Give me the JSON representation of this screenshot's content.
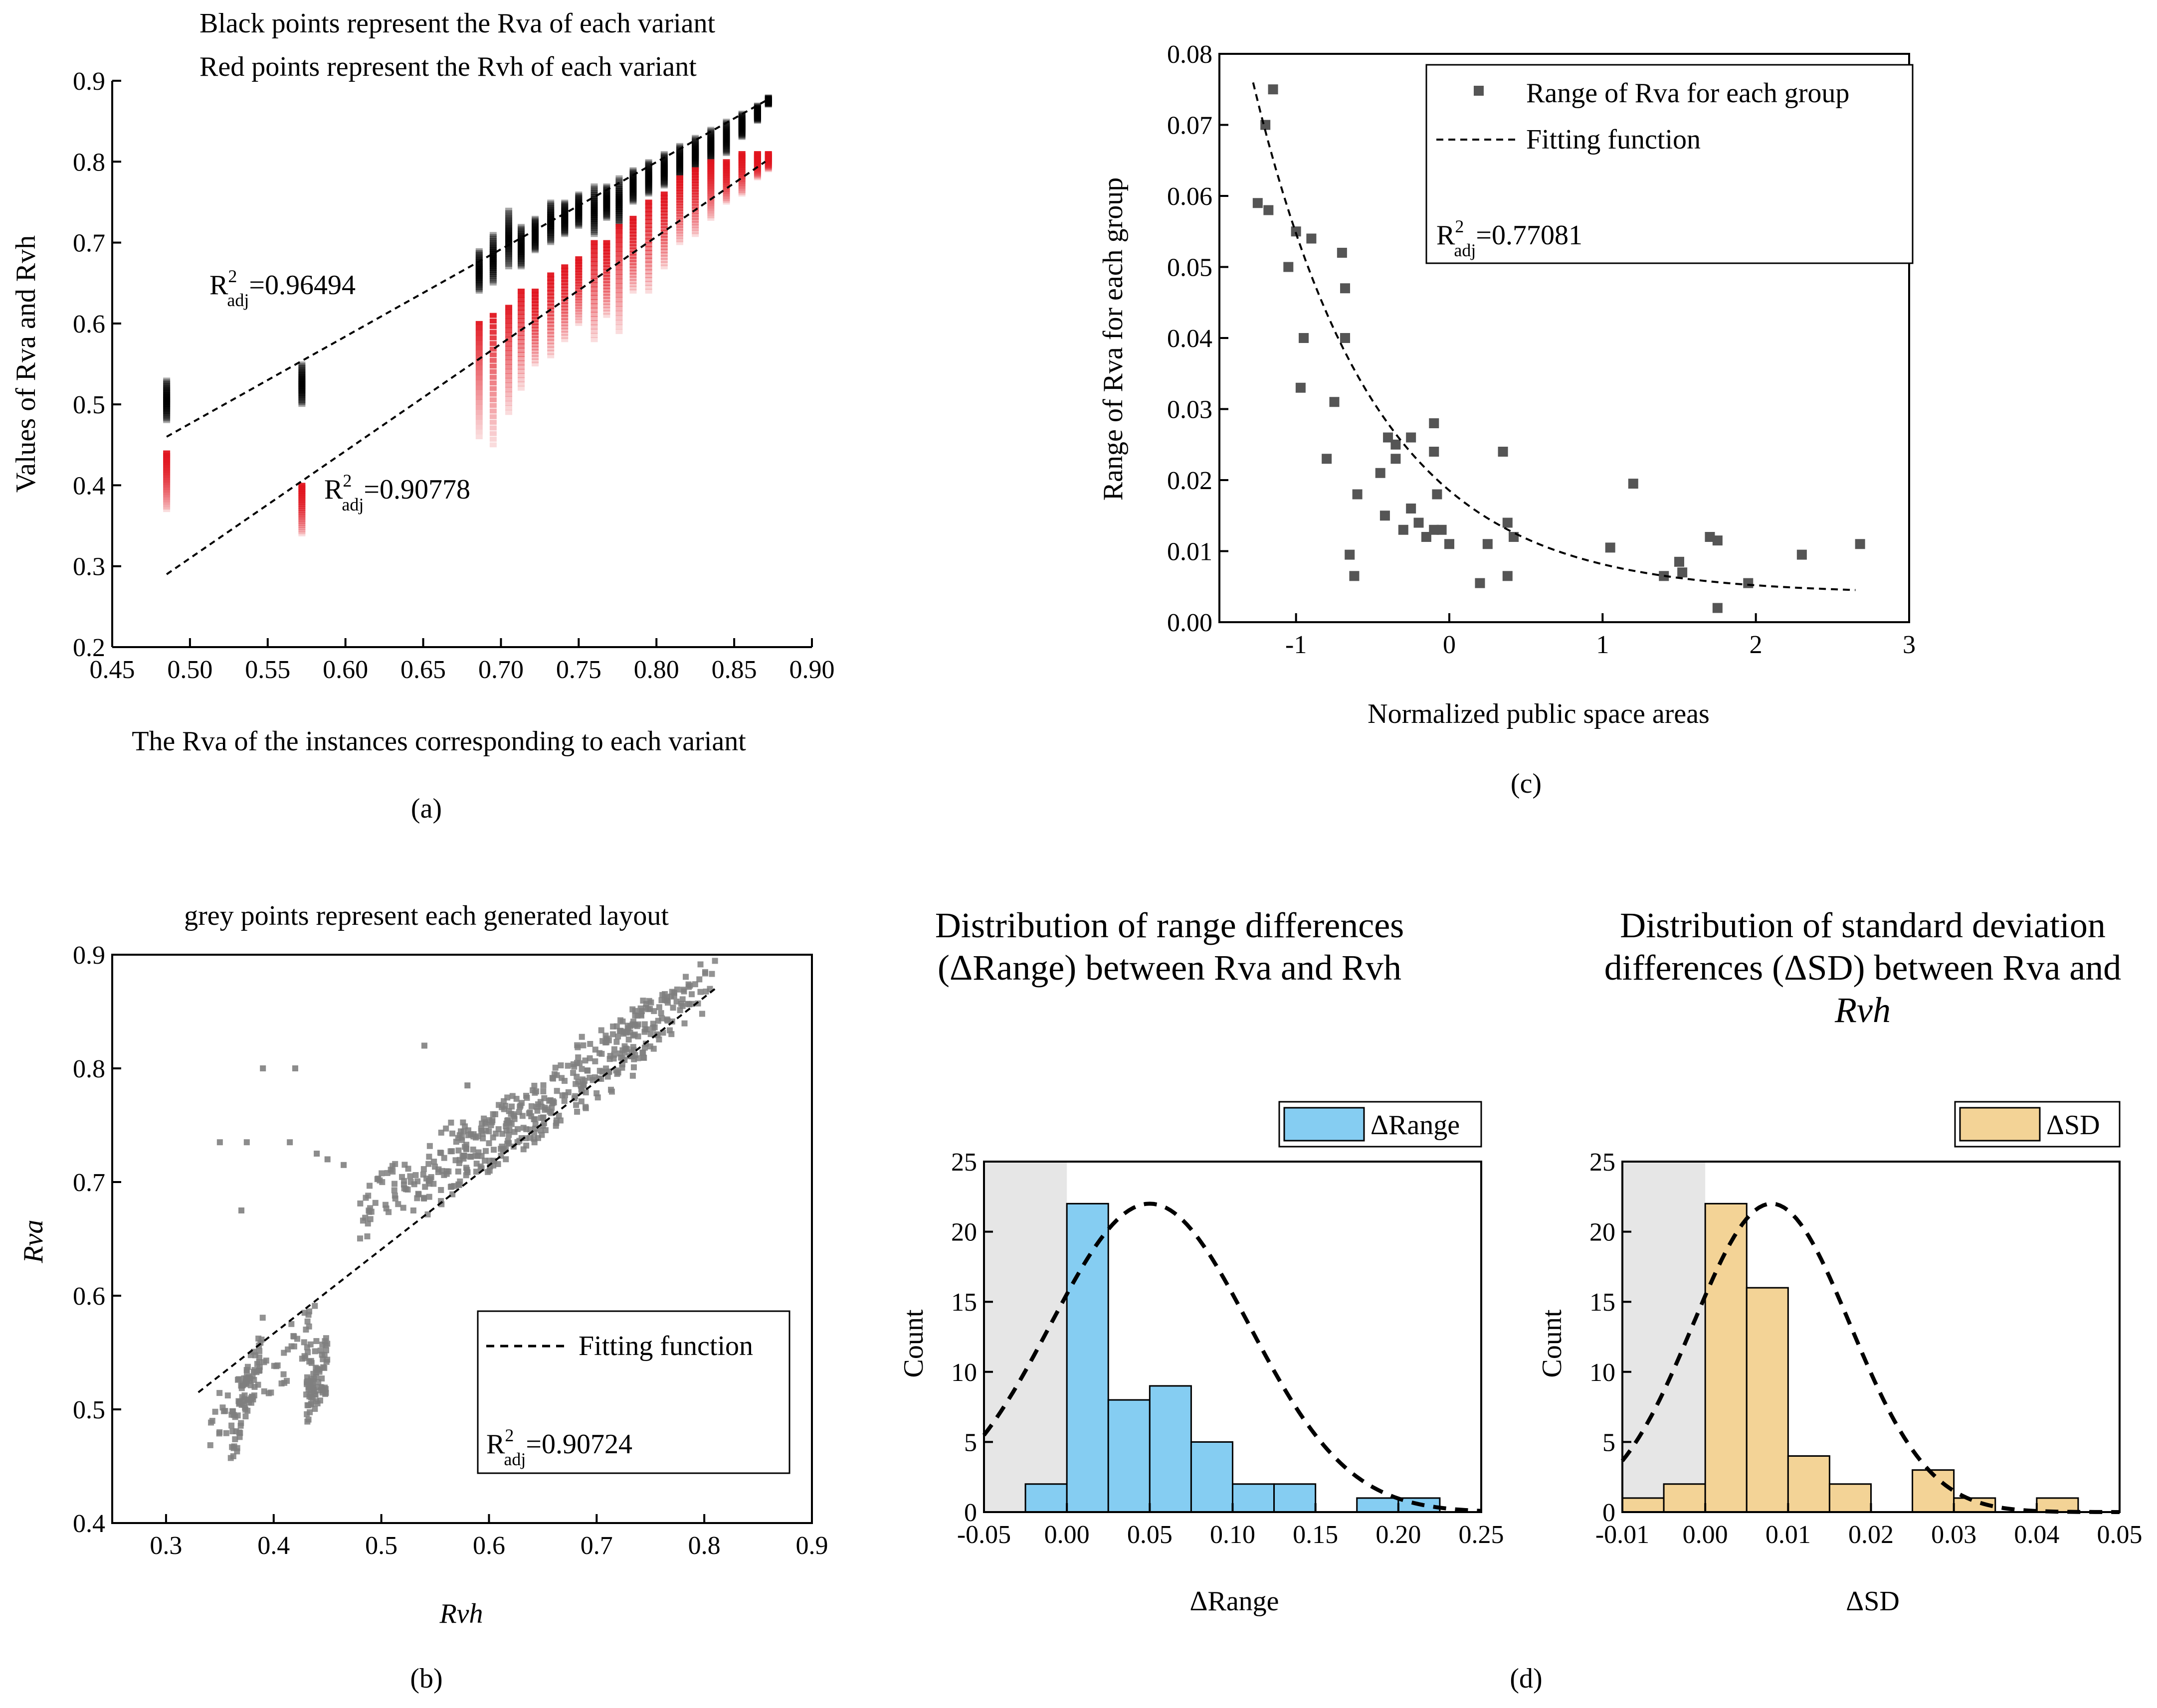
{
  "chart_data": [
    {
      "id": "a",
      "type": "scatter",
      "caption": "(a)",
      "annotations": [
        "Black points represent the Rva of each variant",
        "Red points represent the Rvh of each variant"
      ],
      "xlabel": "The Rva of the instances corresponding to each variant",
      "ylabel": "Values of Rva and Rvh",
      "xlim": [
        0.45,
        0.9
      ],
      "ylim": [
        0.2,
        0.9
      ],
      "xticks": [
        "0.45",
        "0.50",
        "0.55",
        "0.60",
        "0.65",
        "0.70",
        "0.75",
        "0.80",
        "0.85",
        "0.90"
      ],
      "yticks": [
        "0.2",
        "0.3",
        "0.4",
        "0.5",
        "0.6",
        "0.7",
        "0.8",
        "0.9"
      ],
      "series": [
        {
          "name": "Rva",
          "color": "#000000",
          "clusters": [
            [
              0.485,
              0.48,
              0.53
            ],
            [
              0.572,
              0.5,
              0.55
            ],
            [
              0.686,
              0.64,
              0.69
            ],
            [
              0.695,
              0.65,
              0.71
            ],
            [
              0.705,
              0.67,
              0.74
            ],
            [
              0.713,
              0.67,
              0.72
            ],
            [
              0.722,
              0.69,
              0.73
            ],
            [
              0.732,
              0.7,
              0.75
            ],
            [
              0.741,
              0.71,
              0.75
            ],
            [
              0.75,
              0.72,
              0.76
            ],
            [
              0.76,
              0.71,
              0.77
            ],
            [
              0.768,
              0.73,
              0.77
            ],
            [
              0.776,
              0.72,
              0.78
            ],
            [
              0.785,
              0.75,
              0.79
            ],
            [
              0.795,
              0.76,
              0.8
            ],
            [
              0.805,
              0.77,
              0.81
            ],
            [
              0.815,
              0.78,
              0.82
            ],
            [
              0.825,
              0.79,
              0.83
            ],
            [
              0.835,
              0.8,
              0.84
            ],
            [
              0.845,
              0.81,
              0.85
            ],
            [
              0.855,
              0.83,
              0.86
            ],
            [
              0.865,
              0.85,
              0.87
            ],
            [
              0.872,
              0.87,
              0.88
            ]
          ]
        },
        {
          "name": "Rvh",
          "color": "#e0141e",
          "clusters": [
            [
              0.485,
              0.37,
              0.44
            ],
            [
              0.572,
              0.34,
              0.4
            ],
            [
              0.686,
              0.46,
              0.6
            ],
            [
              0.695,
              0.45,
              0.61
            ],
            [
              0.705,
              0.49,
              0.62
            ],
            [
              0.713,
              0.52,
              0.64
            ],
            [
              0.722,
              0.55,
              0.64
            ],
            [
              0.732,
              0.56,
              0.66
            ],
            [
              0.741,
              0.58,
              0.67
            ],
            [
              0.75,
              0.6,
              0.68
            ],
            [
              0.76,
              0.58,
              0.7
            ],
            [
              0.768,
              0.61,
              0.7
            ],
            [
              0.776,
              0.59,
              0.72
            ],
            [
              0.785,
              0.64,
              0.73
            ],
            [
              0.795,
              0.64,
              0.75
            ],
            [
              0.805,
              0.67,
              0.76
            ],
            [
              0.815,
              0.7,
              0.78
            ],
            [
              0.825,
              0.71,
              0.79
            ],
            [
              0.835,
              0.73,
              0.8
            ],
            [
              0.845,
              0.75,
              0.8
            ],
            [
              0.855,
              0.76,
              0.81
            ],
            [
              0.865,
              0.78,
              0.81
            ],
            [
              0.872,
              0.79,
              0.81
            ]
          ]
        }
      ],
      "fits": [
        {
          "label": "R2adj=0.96494",
          "r2": "0.96494",
          "x": [
            0.485,
            0.87
          ],
          "y": [
            0.46,
            0.875
          ]
        },
        {
          "label": "R2adj=0.90778",
          "r2": "0.90778",
          "x": [
            0.485,
            0.87
          ],
          "y": [
            0.29,
            0.8
          ]
        }
      ]
    },
    {
      "id": "b",
      "type": "scatter",
      "caption": "(b)",
      "title": "grey points represent each generated layout",
      "xlabel": "Rvh",
      "ylabel": "Rva",
      "xlim": [
        0.25,
        0.9
      ],
      "ylim": [
        0.4,
        0.9
      ],
      "xticks": [
        "0.3",
        "0.4",
        "0.5",
        "0.6",
        "0.7",
        "0.8",
        "0.9"
      ],
      "yticks": [
        "0.4",
        "0.5",
        "0.6",
        "0.7",
        "0.8",
        "0.9"
      ],
      "legend": "Fitting function",
      "r2": "0.90724",
      "fit": {
        "x": [
          0.33,
          0.81
        ],
        "y": [
          0.515,
          0.87
        ]
      },
      "bands": [
        [
          0.34,
          0.44,
          0.49,
          0.57
        ],
        [
          0.36,
          0.39,
          0.47,
          0.56
        ],
        [
          0.43,
          0.45,
          0.51,
          0.54
        ],
        [
          0.48,
          0.58,
          0.67,
          0.74
        ],
        [
          0.52,
          0.62,
          0.68,
          0.75
        ],
        [
          0.56,
          0.66,
          0.71,
          0.77
        ],
        [
          0.6,
          0.7,
          0.74,
          0.8
        ],
        [
          0.64,
          0.74,
          0.76,
          0.82
        ],
        [
          0.68,
          0.78,
          0.8,
          0.85
        ],
        [
          0.72,
          0.81,
          0.82,
          0.88
        ]
      ],
      "outliers": [
        [
          0.35,
          0.735
        ],
        [
          0.375,
          0.735
        ],
        [
          0.37,
          0.675
        ],
        [
          0.39,
          0.8
        ],
        [
          0.42,
          0.8
        ],
        [
          0.415,
          0.735
        ],
        [
          0.44,
          0.725
        ],
        [
          0.465,
          0.715
        ],
        [
          0.45,
          0.72
        ],
        [
          0.54,
          0.82
        ],
        [
          0.58,
          0.785
        ]
      ]
    },
    {
      "id": "c",
      "type": "scatter",
      "caption": "(c)",
      "xlabel": "Normalized public space areas",
      "ylabel": "Range of Rva for each group",
      "xlim": [
        -1.5,
        3
      ],
      "ylim": [
        0,
        0.08
      ],
      "xticks": [
        "-1",
        "0",
        "1",
        "2",
        "3"
      ],
      "yticks": [
        "0.00",
        "0.01",
        "0.02",
        "0.03",
        "0.04",
        "0.05",
        "0.06",
        "0.07",
        "0.08"
      ],
      "legend": [
        "Range of Rva for each group",
        "Fitting function"
      ],
      "r2": "0.77081",
      "points": [
        [
          -1.25,
          0.059
        ],
        [
          -1.2,
          0.07
        ],
        [
          -1.15,
          0.075
        ],
        [
          -1.18,
          0.058
        ],
        [
          -1.05,
          0.05
        ],
        [
          -1.0,
          0.055
        ],
        [
          -0.95,
          0.04
        ],
        [
          -0.97,
          0.033
        ],
        [
          -0.9,
          0.054
        ],
        [
          -0.8,
          0.023
        ],
        [
          -0.75,
          0.031
        ],
        [
          -0.7,
          0.052
        ],
        [
          -0.68,
          0.047
        ],
        [
          -0.68,
          0.04
        ],
        [
          -0.65,
          0.0095
        ],
        [
          -0.62,
          0.0065
        ],
        [
          -0.6,
          0.018
        ],
        [
          -0.45,
          0.021
        ],
        [
          -0.42,
          0.015
        ],
        [
          -0.4,
          0.026
        ],
        [
          -0.35,
          0.025
        ],
        [
          -0.35,
          0.023
        ],
        [
          -0.3,
          0.013
        ],
        [
          -0.25,
          0.016
        ],
        [
          -0.25,
          0.026
        ],
        [
          -0.2,
          0.014
        ],
        [
          -0.15,
          0.012
        ],
        [
          -0.1,
          0.013
        ],
        [
          -0.1,
          0.024
        ],
        [
          -0.1,
          0.028
        ],
        [
          -0.08,
          0.018
        ],
        [
          -0.05,
          0.013
        ],
        [
          0.0,
          0.011
        ],
        [
          0.2,
          0.0055
        ],
        [
          0.25,
          0.011
        ],
        [
          0.35,
          0.024
        ],
        [
          0.38,
          0.0065
        ],
        [
          0.38,
          0.014
        ],
        [
          0.42,
          0.012
        ],
        [
          1.05,
          0.0105
        ],
        [
          1.2,
          0.0195
        ],
        [
          1.4,
          0.0065
        ],
        [
          1.5,
          0.0085
        ],
        [
          1.52,
          0.007
        ],
        [
          1.7,
          0.012
        ],
        [
          1.75,
          0.0115
        ],
        [
          1.75,
          0.002
        ],
        [
          1.95,
          0.0055
        ],
        [
          2.3,
          0.0095
        ],
        [
          2.68,
          0.011
        ]
      ],
      "fit": {
        "x": [
          -1.28,
          2.65
        ]
      }
    },
    {
      "id": "d1",
      "type": "bar",
      "caption": "(d)",
      "title": [
        "Distribution of range differences",
        "(ΔRange) between Rva and Rvh"
      ],
      "xlabel": "ΔRange",
      "ylabel": "Count",
      "legend": "ΔRange",
      "color": "#85cdf2",
      "xlim": [
        -0.05,
        0.25
      ],
      "ylim": [
        0,
        25
      ],
      "xticks": [
        "-0.05",
        "0.00",
        "0.05",
        "0.10",
        "0.15",
        "0.20",
        "0.25"
      ],
      "yticks": [
        "0",
        "5",
        "10",
        "15",
        "20",
        "25"
      ],
      "bin_start": -0.025,
      "bin_width": 0.025,
      "values": [
        2,
        22,
        8,
        9,
        5,
        2,
        2,
        0,
        1,
        1
      ],
      "normal": {
        "mean": 0.05,
        "sd": 0.06,
        "peak": 22
      },
      "shade": [
        -0.05,
        0.0
      ]
    },
    {
      "id": "d2",
      "type": "bar",
      "title": [
        "Distribution of standard deviation",
        "differences (ΔSD) between Rva and",
        "Rvh"
      ],
      "xlabel": "ΔSD",
      "ylabel": "Count",
      "legend": "ΔSD",
      "color": "#f3d396",
      "xlim": [
        -0.01,
        0.05
      ],
      "ylim": [
        0,
        25
      ],
      "xticks": [
        "-0.01",
        "0.00",
        "0.01",
        "0.02",
        "0.03",
        "0.04",
        "0.05"
      ],
      "yticks": [
        "0",
        "5",
        "10",
        "15",
        "20",
        "25"
      ],
      "bin_start": -0.01,
      "bin_width": 0.005,
      "values": [
        1,
        2,
        22,
        16,
        4,
        2,
        0,
        3,
        1,
        0,
        1
      ],
      "normal": {
        "mean": 0.008,
        "sd": 0.0095,
        "peak": 22
      },
      "shade": [
        -0.01,
        0.0
      ]
    }
  ]
}
